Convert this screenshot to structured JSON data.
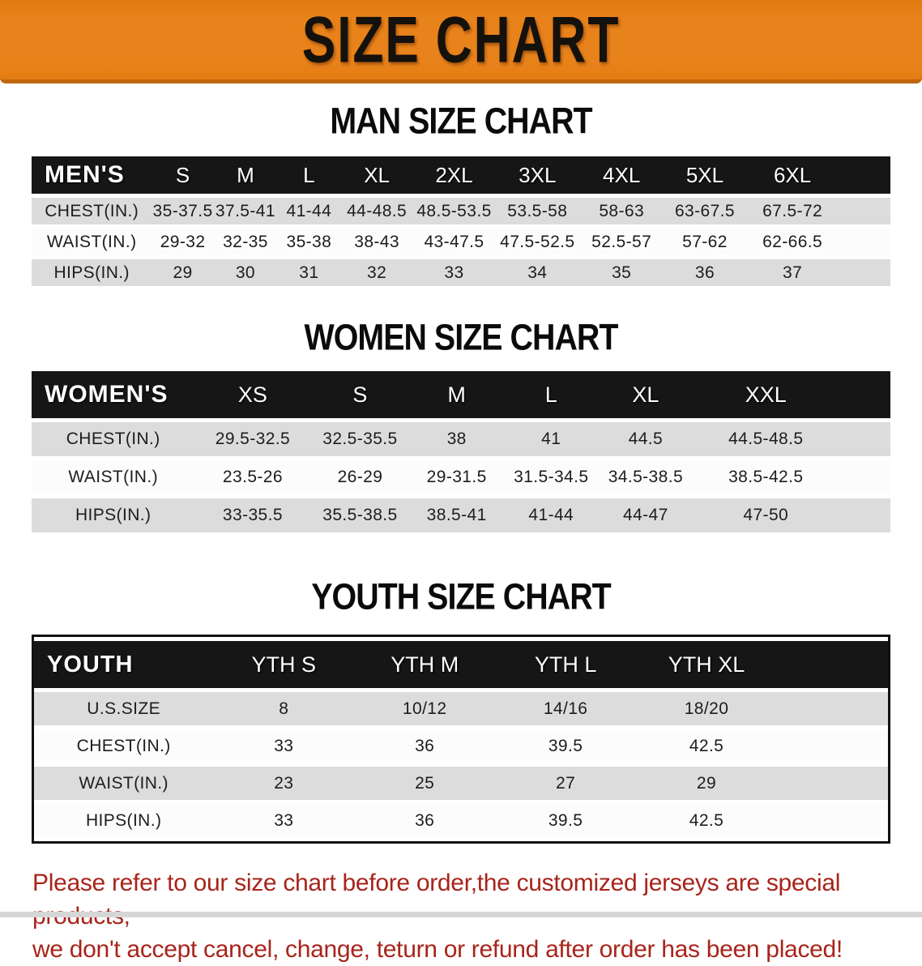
{
  "colors": {
    "banner_orange": "#e8821a",
    "banner_edge": "#c2660c",
    "header_black": "#161616",
    "row_gray": "#dcdcdc",
    "row_white": "#fcfcfc",
    "disclaimer_red": "#a8241b"
  },
  "banner": {
    "title": "SIZE CHART"
  },
  "chart_data": [
    {
      "type": "table",
      "title": "MAN SIZE CHART",
      "header": [
        "MEN'S",
        "S",
        "M",
        "L",
        "XL",
        "2XL",
        "3XL",
        "4XL",
        "5XL",
        "6XL"
      ],
      "rows": [
        {
          "label": "CHEST(IN.)",
          "values": [
            "35-37.5",
            "37.5-41",
            "41-44",
            "44-48.5",
            "48.5-53.5",
            "53.5-58",
            "58-63",
            "63-67.5",
            "67.5-72"
          ]
        },
        {
          "label": "WAIST(IN.)",
          "values": [
            "29-32",
            "32-35",
            "35-38",
            "38-43",
            "43-47.5",
            "47.5-52.5",
            "52.5-57",
            "57-62",
            "62-66.5"
          ]
        },
        {
          "label": "HIPS(IN.)",
          "values": [
            "29",
            "30",
            "31",
            "32",
            "33",
            "34",
            "35",
            "36",
            "37"
          ]
        }
      ]
    },
    {
      "type": "table",
      "title": "WOMEN SIZE CHART",
      "header": [
        "WOMEN'S",
        "XS",
        "S",
        "M",
        "L",
        "XL",
        "XXL"
      ],
      "rows": [
        {
          "label": "CHEST(IN.)",
          "values": [
            "29.5-32.5",
            "32.5-35.5",
            "38",
            "41",
            "44.5",
            "44.5-48.5"
          ]
        },
        {
          "label": "WAIST(IN.)",
          "values": [
            "23.5-26",
            "26-29",
            "29-31.5",
            "31.5-34.5",
            "34.5-38.5",
            "38.5-42.5"
          ]
        },
        {
          "label": "HIPS(IN.)",
          "values": [
            "33-35.5",
            "35.5-38.5",
            "38.5-41",
            "41-44",
            "44-47",
            "47-50"
          ]
        }
      ]
    },
    {
      "type": "table",
      "title": "YOUTH SIZE CHART",
      "header": [
        "YOUTH",
        "YTH S",
        "YTH M",
        "YTH L",
        "YTH XL"
      ],
      "rows": [
        {
          "label": "U.S.SIZE",
          "values": [
            "8",
            "10/12",
            "14/16",
            "18/20"
          ]
        },
        {
          "label": "CHEST(IN.)",
          "values": [
            "33",
            "36",
            "39.5",
            "42.5"
          ]
        },
        {
          "label": "WAIST(IN.)",
          "values": [
            "23",
            "25",
            "27",
            "29"
          ]
        },
        {
          "label": "HIPS(IN.)",
          "values": [
            "33",
            "36",
            "39.5",
            "42.5"
          ]
        }
      ]
    }
  ],
  "disclaimer": {
    "line1": "Please refer to our size chart before order,the customized jerseys are special products,",
    "line2": "we don't accept cancel, change, teturn or refund after order has been placed!"
  }
}
